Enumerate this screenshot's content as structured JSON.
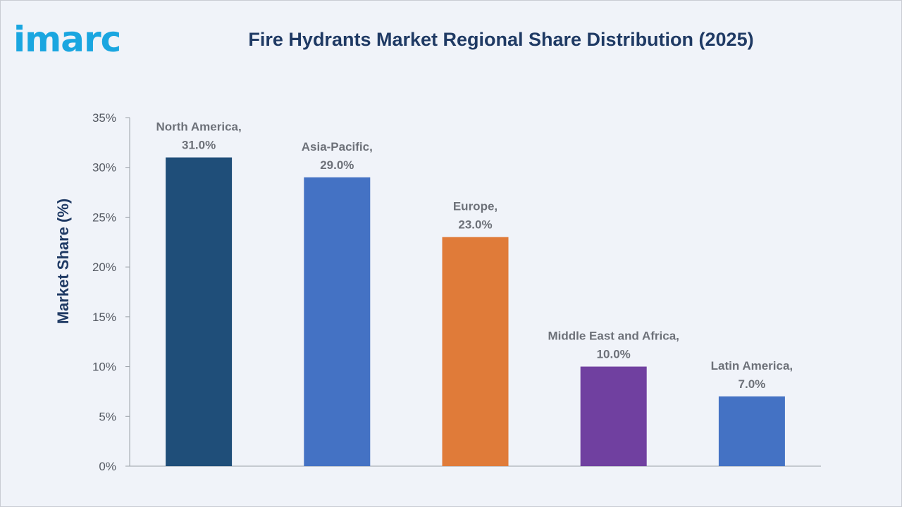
{
  "brand": {
    "logo_text": "imarc",
    "logo_color": "#1aa6e0"
  },
  "chart_data": {
    "type": "bar",
    "title": "Fire Hydrants Market Regional Share Distribution (2025)",
    "xlabel": "",
    "ylabel": "Market Share (%)",
    "ylim": [
      0,
      35
    ],
    "yticks": [
      0,
      5,
      10,
      15,
      20,
      25,
      30,
      35
    ],
    "ytick_labels": [
      "0%",
      "5%",
      "10%",
      "15%",
      "20%",
      "25%",
      "30%",
      "35%"
    ],
    "grid": false,
    "categories": [
      "North America",
      "Asia-Pacific",
      "Europe",
      "Middle East and Africa",
      "Latin America"
    ],
    "values": [
      31.0,
      29.0,
      23.0,
      10.0,
      7.0
    ],
    "data_labels": [
      [
        "North America,",
        "31.0%"
      ],
      [
        "Asia-Pacific,",
        "29.0%"
      ],
      [
        "Europe,",
        "23.0%"
      ],
      [
        "Middle East and Africa,",
        "10.0%"
      ],
      [
        "Latin America,",
        "7.0%"
      ]
    ],
    "colors": [
      "#1f4e79",
      "#4472c4",
      "#e07b39",
      "#7040a0",
      "#4472c4"
    ]
  }
}
